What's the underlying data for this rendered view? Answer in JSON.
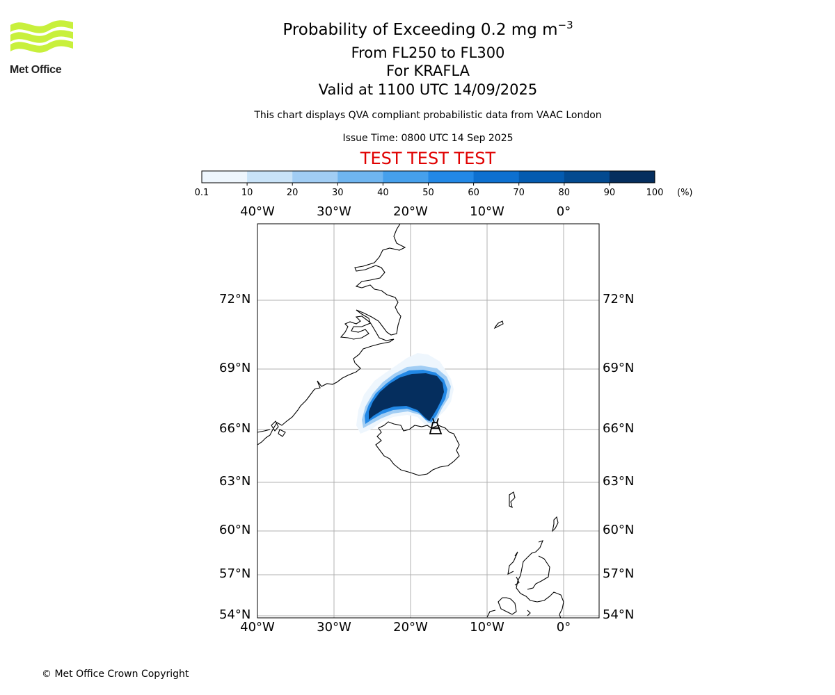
{
  "logo": {
    "text": "Met Office"
  },
  "title": {
    "main_prefix": "Probability of Exceeding 0.2 mg m",
    "main_exponent": "−3",
    "levels": "From FL250 to FL300",
    "volcano": "For KRAFLA",
    "valid": "Valid at 1100 UTC 14/09/2025"
  },
  "info": {
    "description": "This chart displays QVA compliant probabilistic data from VAAC London",
    "issue_time": "Issue Time: 0800 UTC 14 Sep 2025",
    "test_banner": "TEST TEST TEST"
  },
  "colorbar": {
    "ticks": [
      "0.1",
      "10",
      "20",
      "30",
      "40",
      "50",
      "60",
      "70",
      "80",
      "90",
      "100"
    ],
    "unit": "(%)",
    "colors": [
      "#eef6fd",
      "#c9e3f8",
      "#a1cdf4",
      "#6fb5f0",
      "#46a0ec",
      "#2288e6",
      "#0d70d0",
      "#045bb0",
      "#034a90",
      "#052e5e"
    ]
  },
  "map": {
    "lon_labels": [
      "40°W",
      "30°W",
      "20°W",
      "10°W",
      "0°"
    ],
    "lat_labels": [
      "72°N",
      "69°N",
      "66°N",
      "63°N",
      "60°N",
      "57°N",
      "54°N"
    ],
    "gridline_color": "#b0b0b0"
  },
  "footer": {
    "copyright": "© Met Office Crown Copyright"
  }
}
